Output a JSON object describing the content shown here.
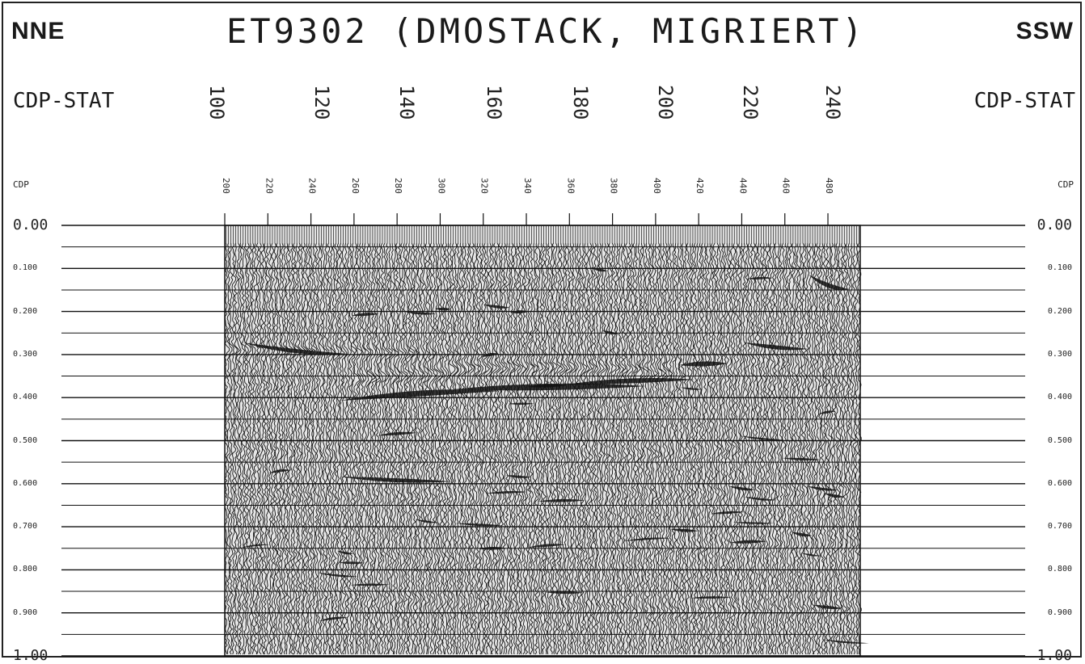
{
  "header": {
    "direction_left": "NNE",
    "direction_right": "SSW",
    "title": "ET9302 (DMOSTACK, MIGRIERT)"
  },
  "axis": {
    "station_label": "CDP-STAT",
    "cdp_label": "CDP",
    "station_ticks": [
      "100",
      "120",
      "140",
      "160",
      "180",
      "200",
      "220",
      "240"
    ],
    "cdp_ticks": [
      "200",
      "220",
      "240",
      "260",
      "280",
      "300",
      "320",
      "340",
      "360",
      "380",
      "400",
      "420",
      "440",
      "460",
      "480"
    ],
    "time_ticks": [
      "0.00",
      "0.100",
      "0.200",
      "0.300",
      "0.400",
      "0.500",
      "0.600",
      "0.700",
      "0.800",
      "0.900",
      "1.00"
    ]
  },
  "section": {
    "time_range": [
      0.0,
      1.0
    ],
    "cdp_range": [
      200,
      495
    ],
    "trace_color": "#111111",
    "background": "#ffffff"
  }
}
